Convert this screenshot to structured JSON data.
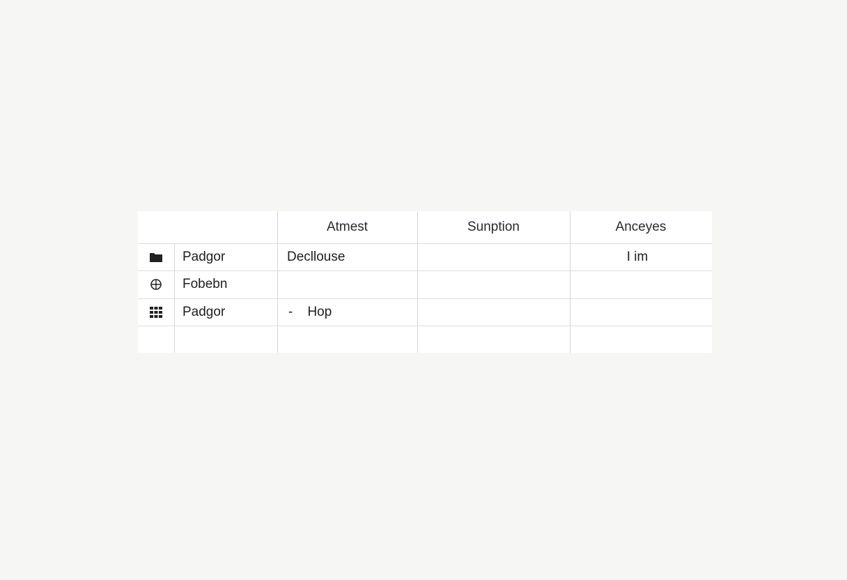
{
  "table": {
    "headers": [
      "",
      "Atmest",
      "Sunption",
      "Anceyes"
    ],
    "rows": [
      {
        "icon": "folder-icon",
        "name": "Padgor",
        "col1": "Decllouse",
        "col2": "",
        "col3": "I im"
      },
      {
        "icon": "globe-icon",
        "name": "Fobebn",
        "col1": "",
        "col2": "",
        "col3": ""
      },
      {
        "icon": "grid-icon",
        "name": "Padgor",
        "col1": "-    Hop",
        "col2": "",
        "col3": ""
      },
      {
        "icon": "",
        "name": "",
        "col1": "",
        "col2": "",
        "col3": ""
      }
    ]
  }
}
